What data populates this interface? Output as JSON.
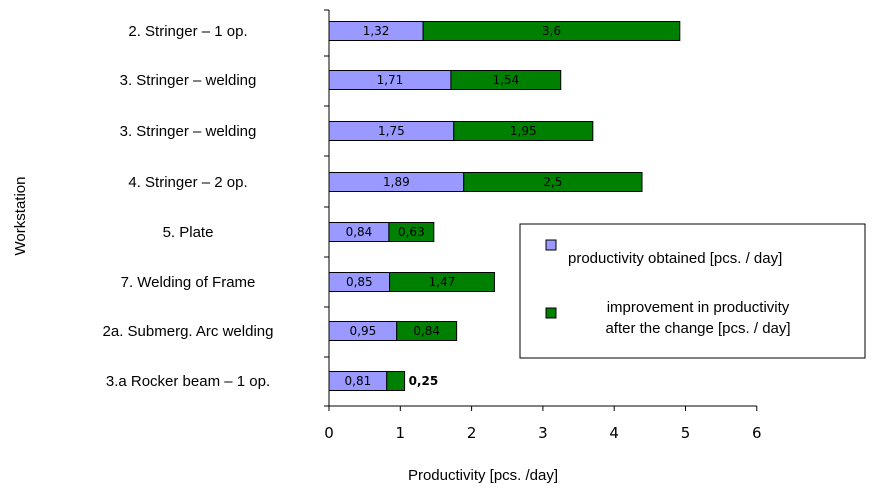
{
  "chart_data": {
    "type": "bar",
    "orientation": "horizontal",
    "stacked": true,
    "title": "",
    "xlabel": "Productivity [pcs. /day]",
    "ylabel": "Workstation",
    "xlim": [
      0,
      6
    ],
    "xticks": [
      "0",
      "1",
      "2",
      "3",
      "4",
      "5",
      "6"
    ],
    "grid": false,
    "legend_position": "right",
    "categories": [
      "2. Stringer – 1 op.",
      "3. Stringer – welding",
      "3. Stringer – welding",
      "4. Stringer – 2 op.",
      "5. Plate",
      "7. Welding of Frame",
      "2a. Submerg. Arc welding",
      "3.a Rocker beam – 1 op."
    ],
    "series": [
      {
        "name": "productivity obtained [pcs. / day]",
        "color": "#9999ff",
        "values": [
          1.32,
          1.71,
          1.75,
          1.89,
          0.84,
          0.85,
          0.95,
          0.81
        ],
        "value_labels": [
          "1,32",
          "1,71",
          "1,75",
          "1,89",
          "0,84",
          "0,85",
          "0,95",
          "0,81"
        ]
      },
      {
        "name": "improvement in productivity after the change [pcs. / day]",
        "legend_lines": [
          "improvement in productivity",
          "after the change [pcs. / day]"
        ],
        "color": "#008000",
        "values": [
          3.6,
          1.54,
          1.95,
          2.5,
          0.63,
          1.47,
          0.84,
          0.25
        ],
        "value_labels": [
          "3,6",
          "1,54",
          "1,95",
          "2,5",
          "0,63",
          "1,47",
          "0,84",
          "0,25"
        ]
      }
    ]
  }
}
